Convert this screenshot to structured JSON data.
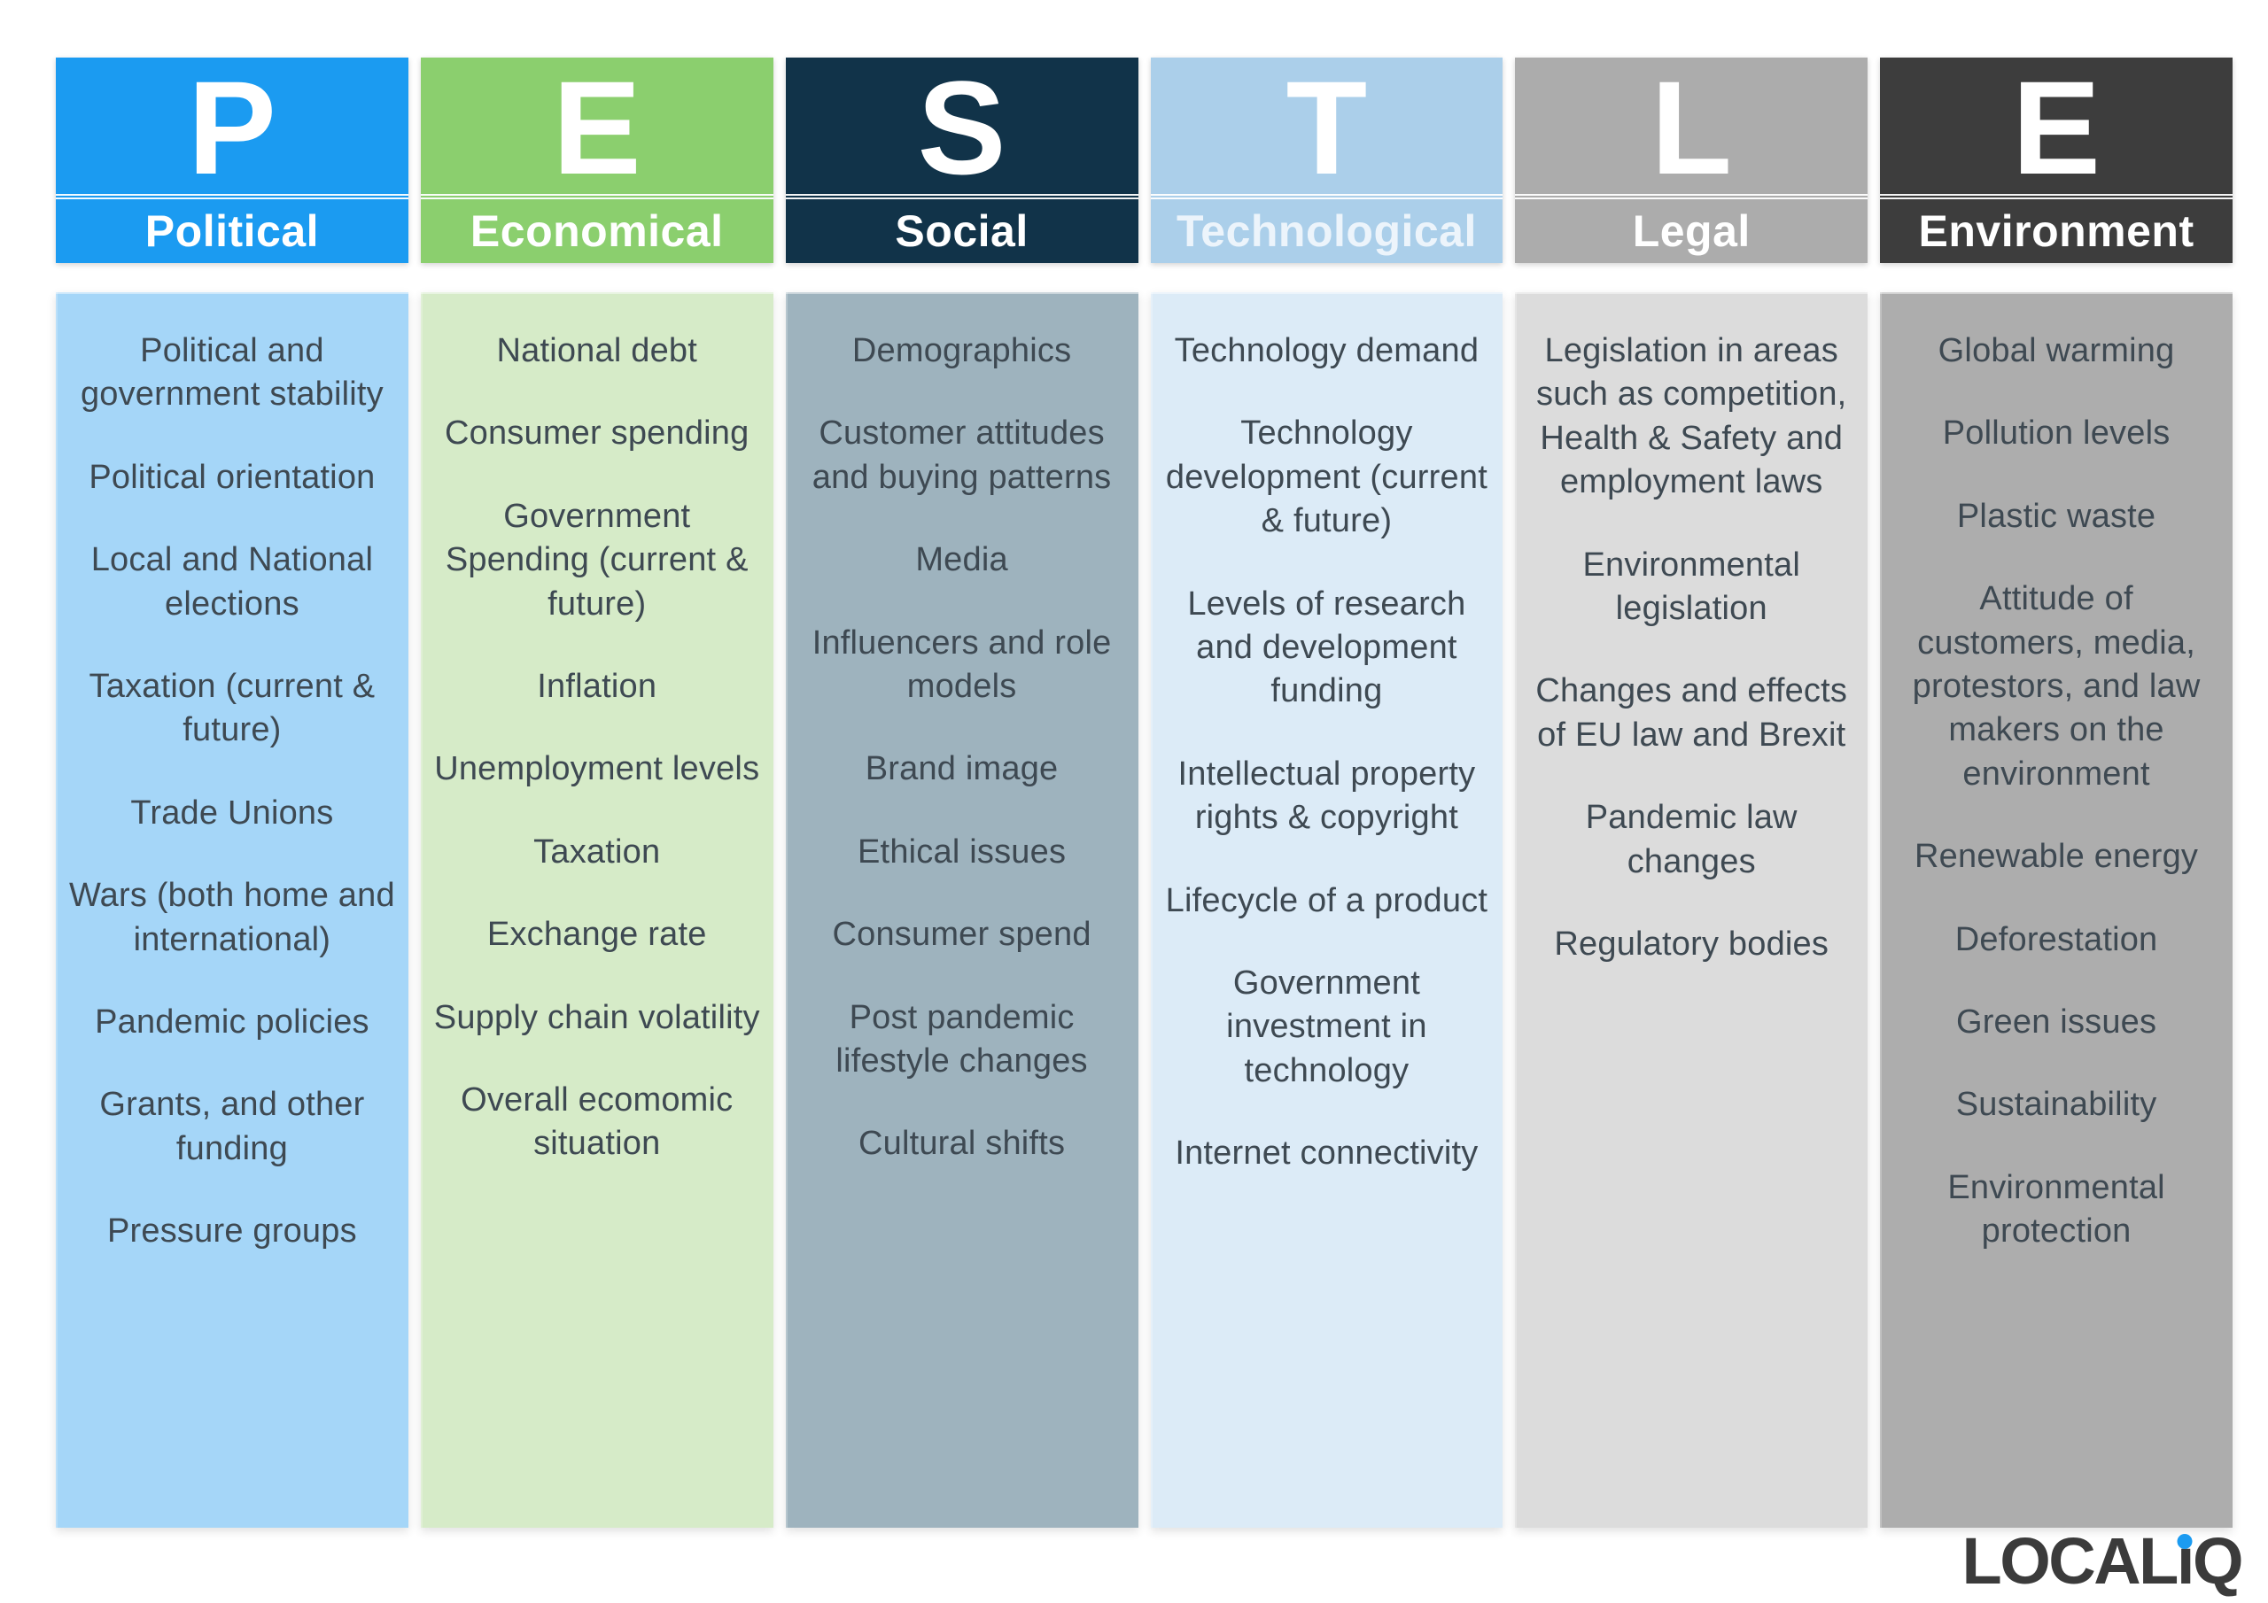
{
  "page": {
    "background": "#FFFFFF",
    "text_color": "#3E4952"
  },
  "columns": [
    {
      "letter": "P",
      "title": "Political",
      "header_bg": "#1B9BF1",
      "panel_bg": "#A5D6F8",
      "title_color": "#FFFFFF",
      "items": [
        "Political and government stability",
        "Political orientation",
        "Local and National elections",
        "Taxation (current & future)",
        "Trade Unions",
        "Wars (both home and international)",
        "Pandemic policies",
        "Grants, and other funding",
        "Pressure groups"
      ]
    },
    {
      "letter": "E",
      "title": "Economical",
      "header_bg": "#8BCF6E",
      "panel_bg": "#D6EBC8",
      "title_color": "#FFFFFF",
      "items": [
        "National debt",
        "Consumer spending",
        "Government Spending (current & future)",
        "Inflation",
        "Unemployment levels",
        "Taxation",
        "Exchange rate",
        "Supply chain volatility",
        "Overall ecomomic situation"
      ]
    },
    {
      "letter": "S",
      "title": "Social",
      "header_bg": "#113349",
      "panel_bg": "#9EB3BE",
      "title_color": "#FFFFFF",
      "items": [
        "Demographics",
        "Customer attitudes and buying patterns",
        "Media",
        "Influencers and role models",
        "Brand image",
        "Ethical issues",
        "Consumer spend",
        "Post pandemic lifestyle changes",
        "Cultural shifts"
      ]
    },
    {
      "letter": "T",
      "title": "Technological",
      "header_bg": "#ABCFEA",
      "panel_bg": "#DCEBF7",
      "title_color": "#FBFDFF",
      "title_opacity": 0.82,
      "items": [
        "Technology demand",
        "Technology development (current & future)",
        "Levels of research and development funding",
        "Intellectual property rights & copyright",
        "Lifecycle of a product",
        "Government investment in technology",
        "Internet connectivity"
      ]
    },
    {
      "letter": "L",
      "title": "Legal",
      "header_bg": "#ACACAC",
      "panel_bg": "#DCDCDC",
      "title_color": "#FFFFFF",
      "items": [
        "Legislation in areas such as competition, Health & Safety and employment laws",
        "Environmental legislation",
        "Changes and effects of EU law and Brexit",
        "Pandemic law changes",
        "Regulatory bodies"
      ]
    },
    {
      "letter": "E",
      "title": "Environment",
      "header_bg": "#3D3D3D",
      "panel_bg": "#ADADAD",
      "title_color": "#FFFFFF",
      "items": [
        "Global warming",
        "Pollution levels",
        "Plastic waste",
        "Attitude of customers, media, protestors, and law makers on the environment",
        "Renewable energy",
        "Deforestation",
        "Green issues",
        "Sustainability",
        "Environmental protection"
      ]
    }
  ],
  "logo": {
    "local": "LOCAL",
    "i": "ı",
    "q": "Q",
    "text_color": "#3B3B3B",
    "dot_color": "#1B9BF1"
  }
}
